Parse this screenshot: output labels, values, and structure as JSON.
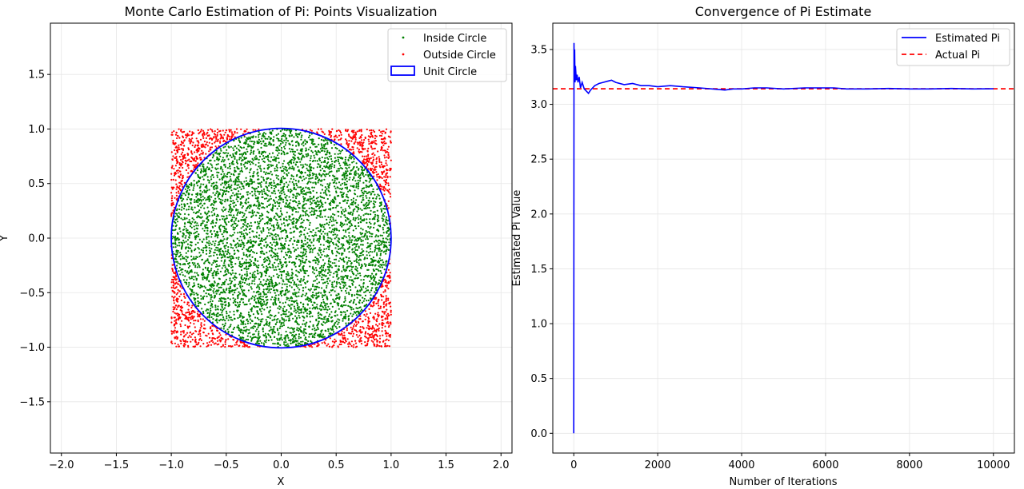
{
  "chart_data": [
    {
      "type": "scatter",
      "title": "Monte Carlo Estimation of Pi: Points Visualization",
      "xlabel": "X",
      "ylabel": "Y",
      "xlim": [
        -2.1,
        2.1
      ],
      "ylim": [
        -1.97,
        1.97
      ],
      "xticks": [
        -2.0,
        -1.5,
        -1.0,
        -0.5,
        0.0,
        0.5,
        1.0,
        1.5,
        2.0
      ],
      "xtick_labels": [
        "−2.0",
        "−1.5",
        "−1.0",
        "−0.5",
        "0.0",
        "0.5",
        "1.0",
        "1.5",
        "2.0"
      ],
      "yticks": [
        -1.5,
        -1.0,
        -0.5,
        0.0,
        0.5,
        1.0,
        1.5
      ],
      "ytick_labels": [
        "−1.5",
        "−1.0",
        "−0.5",
        "0.0",
        "0.5",
        "1.0",
        "1.5"
      ],
      "grid": true,
      "legend_position": "top-right",
      "series": [
        {
          "name": "Inside Circle",
          "color": "#008000",
          "sample_region": "x^2 + y^2 <= 1, x,y in [-1,1]"
        },
        {
          "name": "Outside Circle",
          "color": "#ff0000",
          "sample_region": "x^2 + y^2 > 1, x,y in [-1,1]"
        },
        {
          "name": "Unit Circle",
          "color": "#0000ff",
          "center": [
            0,
            0
          ],
          "radius": 1
        }
      ]
    },
    {
      "type": "line",
      "title": "Convergence of Pi Estimate",
      "xlabel": "Number of Iterations",
      "ylabel": "Estimated Pi Value",
      "xlim": [
        -500,
        10500
      ],
      "ylim": [
        -0.18,
        3.74
      ],
      "xticks": [
        0,
        2000,
        4000,
        6000,
        8000,
        10000
      ],
      "xtick_labels": [
        "0",
        "2000",
        "4000",
        "6000",
        "8000",
        "10000"
      ],
      "yticks": [
        0.0,
        0.5,
        1.0,
        1.5,
        2.0,
        2.5,
        3.0,
        3.5
      ],
      "ytick_labels": [
        "0.0",
        "0.5",
        "1.0",
        "1.5",
        "2.0",
        "2.5",
        "3.0",
        "3.5"
      ],
      "grid": true,
      "legend_position": "top-right",
      "series": [
        {
          "name": "Estimated Pi",
          "color": "#0000ff",
          "style": "solid",
          "x": [
            0,
            5,
            10,
            20,
            30,
            40,
            60,
            80,
            100,
            130,
            160,
            200,
            250,
            300,
            350,
            400,
            500,
            600,
            700,
            800,
            900,
            1000,
            1200,
            1400,
            1600,
            1800,
            2000,
            2300,
            2600,
            3000,
            3300,
            3600,
            3800,
            4000,
            4300,
            4600,
            5000,
            5500,
            6000,
            6200,
            6500,
            7000,
            7500,
            8000,
            8500,
            9000,
            9500,
            10000
          ],
          "y": [
            0.0,
            3.56,
            3.3,
            3.5,
            3.2,
            3.35,
            3.22,
            3.27,
            3.2,
            3.25,
            3.15,
            3.2,
            3.14,
            3.12,
            3.1,
            3.13,
            3.17,
            3.19,
            3.2,
            3.21,
            3.22,
            3.2,
            3.18,
            3.19,
            3.17,
            3.17,
            3.16,
            3.17,
            3.16,
            3.15,
            3.14,
            3.13,
            3.14,
            3.14,
            3.15,
            3.15,
            3.14,
            3.15,
            3.15,
            3.15,
            3.14,
            3.14,
            3.145,
            3.14,
            3.14,
            3.145,
            3.14,
            3.142
          ]
        },
        {
          "name": "Actual Pi",
          "color": "#ff0000",
          "style": "dashed",
          "y_constant": 3.14159
        }
      ]
    }
  ]
}
